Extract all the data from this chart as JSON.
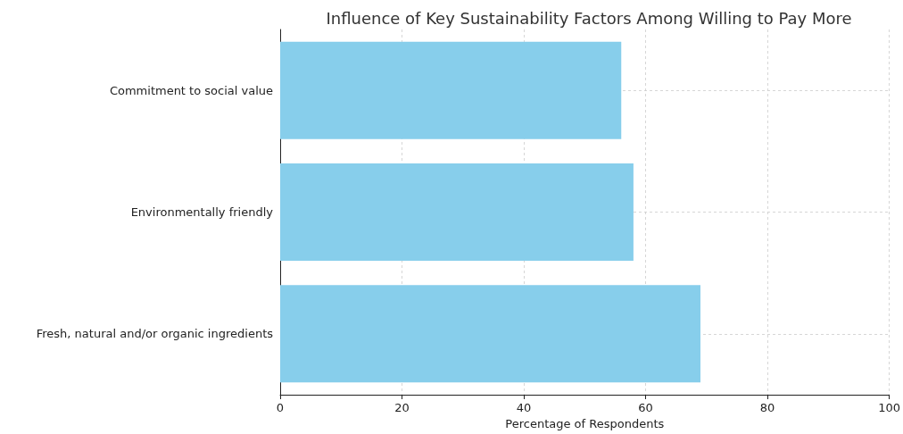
{
  "chart_data": {
    "type": "bar",
    "orientation": "horizontal",
    "title": "Influence of Key Sustainability Factors Among Willing to Pay More",
    "xlabel": "Percentage of Respondents",
    "categories": [
      "Commitment to social value",
      "Environmentally friendly",
      "Fresh, natural and/or organic ingredients"
    ],
    "values": [
      56,
      58,
      69
    ],
    "color": "#87ceeb",
    "xlim": [
      0,
      100
    ],
    "xticks": [
      0,
      20,
      40,
      60,
      80,
      100
    ],
    "grid": true
  }
}
